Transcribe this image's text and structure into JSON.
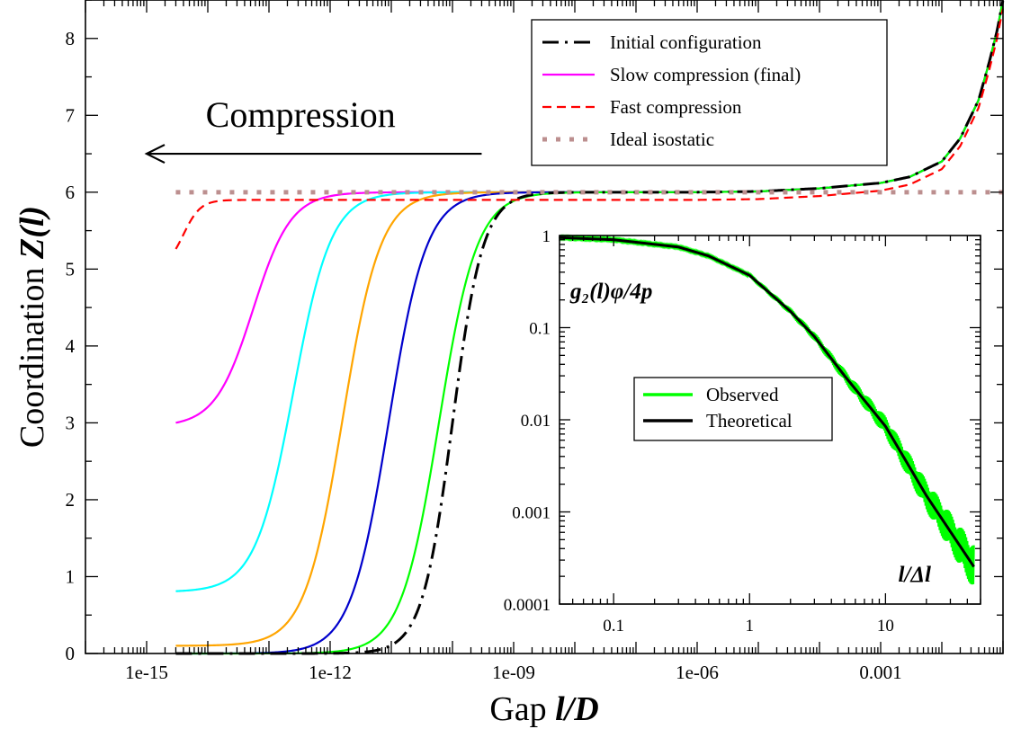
{
  "chart_data": [
    {
      "type": "line",
      "xscale": "log",
      "xlim": [
        1e-16,
        0.1
      ],
      "ylim": [
        0,
        8.5
      ],
      "xlabel": {
        "prefix": "Gap ",
        "var": "l/D"
      },
      "ylabel": {
        "prefix": "Coordination ",
        "var": "Z(l)"
      },
      "x_ticks": [
        {
          "value": 1e-15,
          "label": "1e-15"
        },
        {
          "value": 1e-12,
          "label": "1e-12"
        },
        {
          "value": 1e-09,
          "label": "1e-09"
        },
        {
          "value": 1e-06,
          "label": "1e-06"
        },
        {
          "value": 0.001,
          "label": "0.001"
        }
      ],
      "y_ticks": [
        {
          "value": 0,
          "label": "0"
        },
        {
          "value": 1,
          "label": "1"
        },
        {
          "value": 2,
          "label": "2"
        },
        {
          "value": 3,
          "label": "3"
        },
        {
          "value": 4,
          "label": "4"
        },
        {
          "value": 5,
          "label": "5"
        },
        {
          "value": 6,
          "label": "6"
        },
        {
          "value": 7,
          "label": "7"
        },
        {
          "value": 8,
          "label": "8"
        }
      ],
      "annotation": {
        "text": "Compression",
        "arrow_from": 3e-10,
        "arrow_to": 1e-15,
        "y": 6.5
      },
      "legend": {
        "placement": "top-right",
        "entries": [
          {
            "name": "Initial configuration",
            "color": "#000000",
            "dash": "dash-dot"
          },
          {
            "name": "Slow compression (final)",
            "color": "#ff00ff",
            "dash": "solid"
          },
          {
            "name": "Fast compression",
            "color": "#ff0000",
            "dash": "dashed"
          },
          {
            "name": "Ideal isostatic",
            "color": "#bc8f8f",
            "dash": "dotted"
          }
        ]
      },
      "curve_shape": {
        "x": [
          1e-08,
          1e-07,
          1e-06,
          1e-05,
          0.0001,
          0.001,
          0.003,
          0.01,
          0.02,
          0.04,
          0.06,
          0.08,
          0.1
        ],
        "y": [
          6.0,
          6.0,
          6.0,
          6.01,
          6.05,
          6.12,
          6.2,
          6.4,
          6.7,
          7.2,
          7.7,
          8.1,
          8.5
        ]
      },
      "series": [
        {
          "name": "Slow compression (final)",
          "color": "#ff00ff",
          "dash": "solid",
          "width": 2.2,
          "x_start": 3e-15,
          "x_mid": 5.5e-14,
          "width_decades": 0.62,
          "y_start": 2.95,
          "plateau": 6.0
        },
        {
          "color": "#00ffff",
          "dash": "solid",
          "width": 2.2,
          "x_start": 3e-15,
          "x_mid": 2.5e-13,
          "width_decades": 0.62,
          "y_start": 0.8,
          "plateau": 6.0
        },
        {
          "color": "#ffa500",
          "dash": "solid",
          "width": 2.2,
          "x_start": 3e-15,
          "x_mid": 1.6e-12,
          "width_decades": 0.62,
          "y_start": 0.1,
          "plateau": 6.0
        },
        {
          "color": "#0000cc",
          "dash": "solid",
          "width": 2.2,
          "x_start": 3e-15,
          "x_mid": 9e-12,
          "width_decades": 0.62,
          "y_start": 0.0,
          "plateau": 6.0
        },
        {
          "color": "#00ff00",
          "dash": "solid",
          "width": 2.2,
          "x_start": 3e-15,
          "x_mid": 6e-11,
          "width_decades": 0.62,
          "y_start": 0.0,
          "plateau": 6.0
        },
        {
          "name": "Initial configuration",
          "color": "#000000",
          "dash": "dash-dot",
          "width": 3.0,
          "x_start": 3e-15,
          "x_mid": 1e-10,
          "width_decades": 0.5,
          "y_start": 0.0,
          "plateau": 6.0
        },
        {
          "name": "Fast compression",
          "color": "#ff0000",
          "dash": "dashed",
          "width": 2.2,
          "x_start": 3e-15,
          "x_mid": 4e-15,
          "width_decades": 0.28,
          "y_start": 5.0,
          "plateau": 5.9
        },
        {
          "name": "Ideal isostatic",
          "color": "#bc8f8f",
          "dash": "dotted",
          "width": 5.0,
          "constant": 6.0,
          "x_start": 3e-15,
          "x_end": 0.1
        }
      ]
    },
    {
      "type": "line",
      "placement": "inset",
      "xscale": "log",
      "yscale": "log",
      "xlim": [
        0.04,
        50
      ],
      "ylim": [
        0.0001,
        1
      ],
      "xlabel": {
        "var": "l/Δl"
      },
      "ylabel": {
        "var": "g₂(l)φ/4p"
      },
      "x_ticks": [
        {
          "value": 0.1,
          "label": "0.1"
        },
        {
          "value": 1,
          "label": "1"
        },
        {
          "value": 10,
          "label": "10"
        }
      ],
      "y_ticks": [
        {
          "value": 0.0001,
          "label": "0.0001"
        },
        {
          "value": 0.001,
          "label": "0.001"
        },
        {
          "value": 0.01,
          "label": "0.01"
        },
        {
          "value": 0.1,
          "label": "0.1"
        },
        {
          "value": 1,
          "label": "1"
        }
      ],
      "legend": {
        "placement": "center-left",
        "entries": [
          {
            "name": "Observed",
            "color": "#00ff00",
            "dash": "solid"
          },
          {
            "name": "Theoretical",
            "color": "#000000",
            "dash": "solid"
          }
        ]
      },
      "series": [
        {
          "name": "Observed",
          "color": "#00ff00",
          "x": [
            0.04,
            0.1,
            0.3,
            0.5,
            1,
            2,
            3,
            5,
            10,
            20,
            45
          ],
          "y": [
            0.95,
            0.9,
            0.75,
            0.6,
            0.37,
            0.15,
            0.08,
            0.03,
            0.0085,
            0.0015,
            0.00025
          ]
        },
        {
          "name": "Theoretical",
          "color": "#000000",
          "x": [
            0.04,
            0.1,
            0.3,
            0.5,
            1,
            2,
            3,
            5,
            10,
            20,
            45
          ],
          "y": [
            0.95,
            0.9,
            0.75,
            0.6,
            0.37,
            0.15,
            0.08,
            0.03,
            0.0085,
            0.0015,
            0.00025
          ]
        }
      ]
    }
  ]
}
